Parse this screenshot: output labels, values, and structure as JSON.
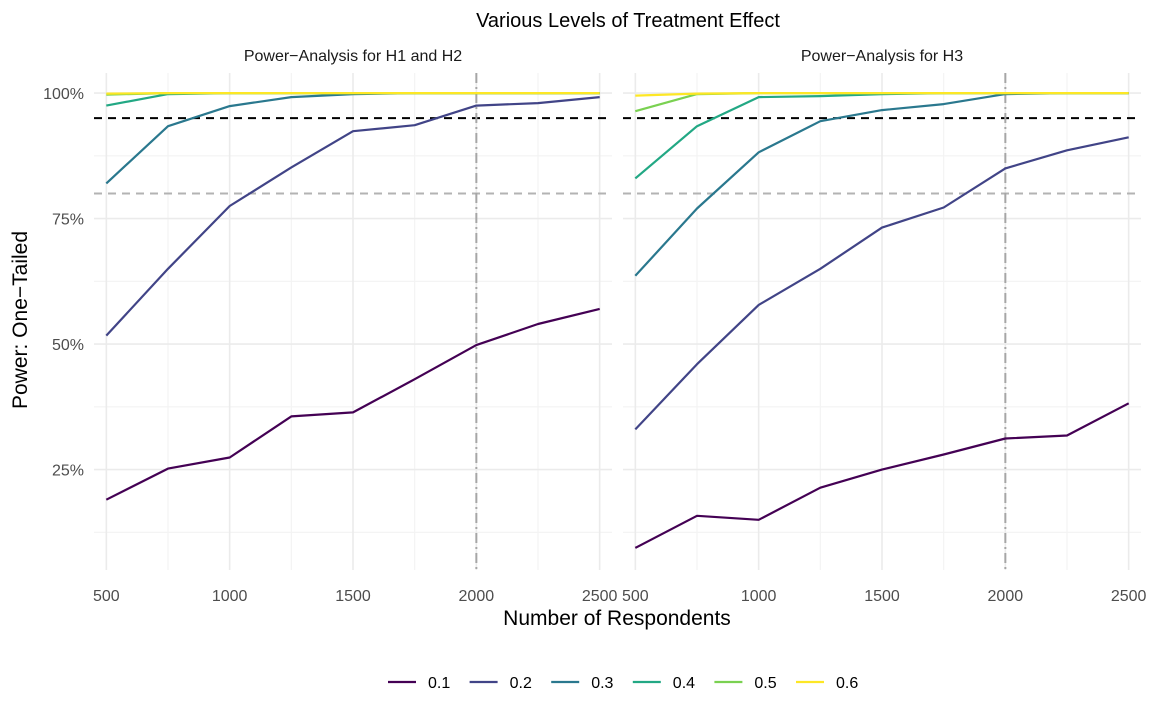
{
  "chart_data": {
    "type": "line",
    "title": "Various Levels of Treatment Effect",
    "xlabel": "Number of Respondents",
    "ylabel": "Power: One−Tailed",
    "xlim": [
      450,
      2550
    ],
    "ylim": [
      0.05,
      1.04
    ],
    "x_ticks": [
      500,
      1000,
      1500,
      2000,
      2500
    ],
    "x_tick_labels": [
      "500",
      "1000",
      "1500",
      "2000",
      "2500"
    ],
    "y_ticks": [
      0.25,
      0.5,
      0.75,
      1.0
    ],
    "y_tick_labels": [
      "25%",
      "50%",
      "75%",
      "100%"
    ],
    "reference_lines": {
      "h_black_dashed": 0.95,
      "h_gray_dashed": 0.8,
      "v_gray_dashdot": 2000
    },
    "grid": true,
    "legend": {
      "position": "bottom",
      "items": [
        {
          "label": "0.1",
          "color": "#440154"
        },
        {
          "label": "0.2",
          "color": "#414487"
        },
        {
          "label": "0.3",
          "color": "#2A788E"
        },
        {
          "label": "0.4",
          "color": "#22A884"
        },
        {
          "label": "0.5",
          "color": "#7AD151"
        },
        {
          "label": "0.6",
          "color": "#FDE725"
        }
      ]
    },
    "x": [
      500,
      750,
      1000,
      1250,
      1500,
      1750,
      2000,
      2250,
      2500
    ],
    "panels": [
      {
        "title": "Power−Analysis for H1 and H2",
        "series": [
          {
            "name": "0.1",
            "values": [
              0.19,
              0.252,
              0.274,
              0.356,
              0.364,
              0.43,
              0.498,
              0.54,
              0.57
            ]
          },
          {
            "name": "0.2",
            "values": [
              0.517,
              0.65,
              0.775,
              0.852,
              0.924,
              0.936,
              0.975,
              0.98,
              0.992
            ]
          },
          {
            "name": "0.3",
            "values": [
              0.82,
              0.934,
              0.974,
              0.992,
              0.998,
              1.0,
              1.0,
              1.0,
              1.0
            ]
          },
          {
            "name": "0.4",
            "values": [
              0.975,
              0.998,
              1.0,
              1.0,
              1.0,
              1.0,
              1.0,
              1.0,
              1.0
            ]
          },
          {
            "name": "0.5",
            "values": [
              0.997,
              1.0,
              1.0,
              1.0,
              1.0,
              1.0,
              1.0,
              1.0,
              1.0
            ]
          },
          {
            "name": "0.6",
            "values": [
              0.999,
              1.0,
              1.0,
              1.0,
              1.0,
              1.0,
              1.0,
              1.0,
              1.0
            ]
          }
        ]
      },
      {
        "title": "Power−Analysis for H3",
        "series": [
          {
            "name": "0.1",
            "values": [
              0.094,
              0.158,
              0.15,
              0.214,
              0.25,
              0.28,
              0.312,
              0.318,
              0.382
            ]
          },
          {
            "name": "0.2",
            "values": [
              0.33,
              0.46,
              0.578,
              0.65,
              0.732,
              0.772,
              0.85,
              0.886,
              0.912
            ]
          },
          {
            "name": "0.3",
            "values": [
              0.636,
              0.77,
              0.882,
              0.944,
              0.966,
              0.978,
              0.998,
              1.0,
              1.0
            ]
          },
          {
            "name": "0.4",
            "values": [
              0.83,
              0.934,
              0.992,
              0.994,
              0.998,
              1.0,
              1.0,
              1.0,
              1.0
            ]
          },
          {
            "name": "0.5",
            "values": [
              0.964,
              0.998,
              1.0,
              1.0,
              1.0,
              1.0,
              1.0,
              1.0,
              1.0
            ]
          },
          {
            "name": "0.6",
            "values": [
              0.995,
              0.999,
              1.0,
              1.0,
              1.0,
              1.0,
              1.0,
              1.0,
              1.0
            ]
          }
        ]
      }
    ]
  }
}
